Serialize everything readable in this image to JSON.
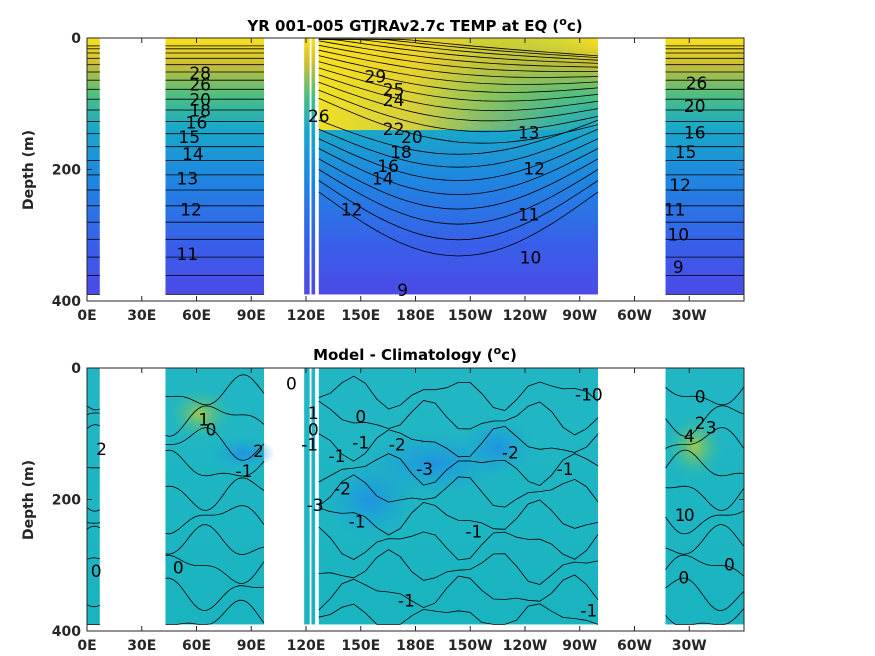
{
  "chart_data": [
    {
      "type": "heatmap",
      "title": "YR 001-005 GTJRAv2.7c TEMP at EQ (",
      "title_sup": "o",
      "title_unit": "c)",
      "ylabel": "Depth (m)",
      "xlabel": "",
      "x_ticks": [
        "0E",
        "30E",
        "60E",
        "90E",
        "120E",
        "150E",
        "180E",
        "150W",
        "120W",
        "90W",
        "60W",
        "30W"
      ],
      "y_ticks": [
        "0",
        "200",
        "400"
      ],
      "xlim": [
        0,
        360
      ],
      "ylim": [
        400,
        0
      ],
      "colormap": "parula",
      "contour_labels": [
        {
          "text": "29",
          "lon": 158,
          "depth": 60
        },
        {
          "text": "28",
          "lon": 62,
          "depth": 55
        },
        {
          "text": "26",
          "lon": 62,
          "depth": 72
        },
        {
          "text": "25",
          "lon": 168,
          "depth": 80
        },
        {
          "text": "24",
          "lon": 168,
          "depth": 96
        },
        {
          "text": "20",
          "lon": 62,
          "depth": 95
        },
        {
          "text": "18",
          "lon": 62,
          "depth": 112
        },
        {
          "text": "16",
          "lon": 60,
          "depth": 130
        },
        {
          "text": "15",
          "lon": 56,
          "depth": 152
        },
        {
          "text": "14",
          "lon": 58,
          "depth": 178
        },
        {
          "text": "13",
          "lon": 55,
          "depth": 215
        },
        {
          "text": "12",
          "lon": 57,
          "depth": 262
        },
        {
          "text": "11",
          "lon": 55,
          "depth": 330
        },
        {
          "text": "26",
          "lon": 127,
          "depth": 120
        },
        {
          "text": "22",
          "lon": 168,
          "depth": 140
        },
        {
          "text": "20",
          "lon": 178,
          "depth": 152
        },
        {
          "text": "18",
          "lon": 172,
          "depth": 175
        },
        {
          "text": "16",
          "lon": 165,
          "depth": 196
        },
        {
          "text": "14",
          "lon": 162,
          "depth": 215
        },
        {
          "text": "12",
          "lon": 145,
          "depth": 262
        },
        {
          "text": "13",
          "lon": 242,
          "depth": 145
        },
        {
          "text": "12",
          "lon": 245,
          "depth": 200
        },
        {
          "text": "11",
          "lon": 242,
          "depth": 270
        },
        {
          "text": "10",
          "lon": 243,
          "depth": 335
        },
        {
          "text": "9",
          "lon": 173,
          "depth": 385
        },
        {
          "text": "26",
          "lon": 334,
          "depth": 70
        },
        {
          "text": "20",
          "lon": 333,
          "depth": 105
        },
        {
          "text": "16",
          "lon": 333,
          "depth": 145
        },
        {
          "text": "15",
          "lon": 328,
          "depth": 175
        },
        {
          "text": "12",
          "lon": 325,
          "depth": 225
        },
        {
          "text": "11",
          "lon": 322,
          "depth": 262
        },
        {
          "text": "10",
          "lon": 324,
          "depth": 300
        },
        {
          "text": "9",
          "lon": 324,
          "depth": 350
        }
      ]
    },
    {
      "type": "heatmap",
      "title": "Model - Climatology (",
      "title_sup": "o",
      "title_unit": "c)",
      "ylabel": "Depth (m)",
      "xlabel": "",
      "x_ticks": [
        "0E",
        "30E",
        "60E",
        "90E",
        "120E",
        "150E",
        "180E",
        "150W",
        "120W",
        "90W",
        "60W",
        "30W"
      ],
      "y_ticks": [
        "0",
        "200",
        "400"
      ],
      "xlim": [
        0,
        360
      ],
      "ylim": [
        400,
        0
      ],
      "colormap": "parula",
      "contour_labels": [
        {
          "text": "2",
          "lon": 8,
          "depth": 125
        },
        {
          "text": "0",
          "lon": 5,
          "depth": 310
        },
        {
          "text": "0",
          "lon": 50,
          "depth": 305
        },
        {
          "text": "1",
          "lon": 64,
          "depth": 80
        },
        {
          "text": "0",
          "lon": 68,
          "depth": 95
        },
        {
          "text": "2",
          "lon": 94,
          "depth": 128
        },
        {
          "text": "-1",
          "lon": 86,
          "depth": 158
        },
        {
          "text": "0",
          "lon": 112,
          "depth": 25
        },
        {
          "text": "1",
          "lon": 124,
          "depth": 70
        },
        {
          "text": "0",
          "lon": 124,
          "depth": 95
        },
        {
          "text": "-1",
          "lon": 122,
          "depth": 118
        },
        {
          "text": "-3",
          "lon": 125,
          "depth": 210
        },
        {
          "text": "-2",
          "lon": 140,
          "depth": 185
        },
        {
          "text": "0",
          "lon": 150,
          "depth": 75
        },
        {
          "text": "-1",
          "lon": 150,
          "depth": 115
        },
        {
          "text": "-1",
          "lon": 137,
          "depth": 135
        },
        {
          "text": "-2",
          "lon": 170,
          "depth": 118
        },
        {
          "text": "-3",
          "lon": 185,
          "depth": 155
        },
        {
          "text": "-1",
          "lon": 148,
          "depth": 235
        },
        {
          "text": "-2",
          "lon": 232,
          "depth": 130
        },
        {
          "text": "-1",
          "lon": 212,
          "depth": 250
        },
        {
          "text": "-1",
          "lon": 262,
          "depth": 155
        },
        {
          "text": "-10",
          "lon": 275,
          "depth": 42
        },
        {
          "text": "-1",
          "lon": 175,
          "depth": 355
        },
        {
          "text": "-1",
          "lon": 275,
          "depth": 370
        },
        {
          "text": "0",
          "lon": 336,
          "depth": 45
        },
        {
          "text": "2",
          "lon": 336,
          "depth": 85
        },
        {
          "text": "4",
          "lon": 330,
          "depth": 105
        },
        {
          "text": "3",
          "lon": 342,
          "depth": 92
        },
        {
          "text": "1",
          "lon": 325,
          "depth": 225
        },
        {
          "text": "0",
          "lon": 330,
          "depth": 225
        },
        {
          "text": "0",
          "lon": 327,
          "depth": 320
        },
        {
          "text": "0",
          "lon": 352,
          "depth": 300
        }
      ]
    }
  ]
}
